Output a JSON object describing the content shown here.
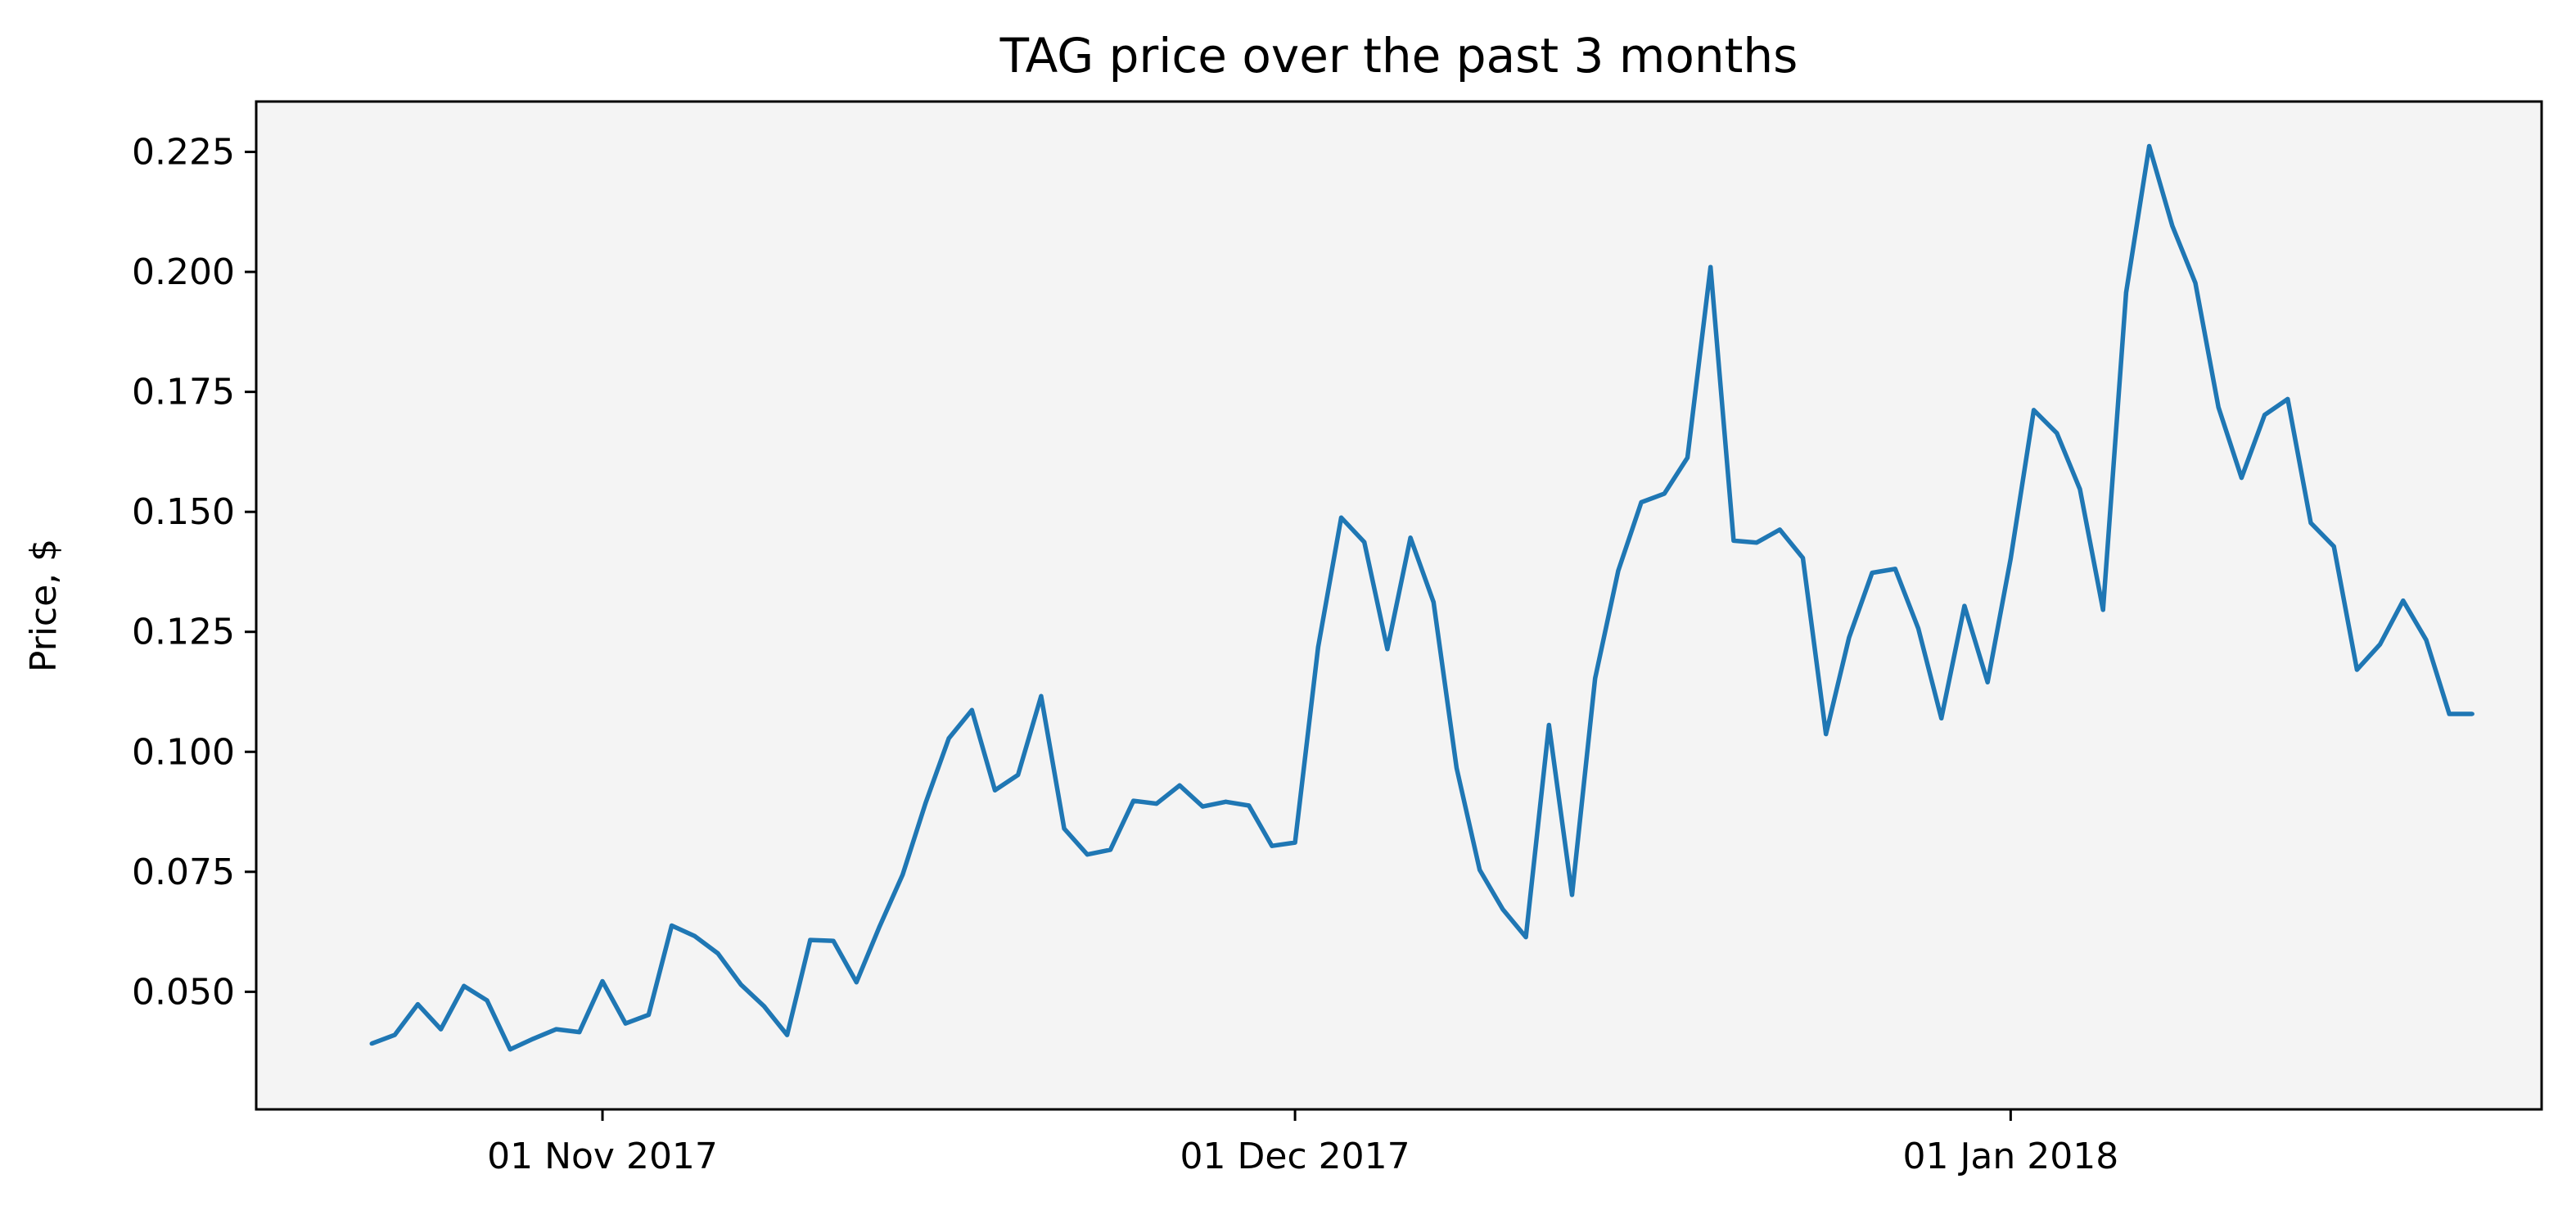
{
  "colors": {
    "background": "#ffffff",
    "plot_background": "#f4f4f4",
    "line": "#1f77b4",
    "axis": "#000000"
  },
  "chart_data": {
    "type": "line",
    "title": "TAG price over the past 3 months",
    "xlabel": "",
    "ylabel": "Price, $",
    "x_axis_type": "date",
    "xlim": [
      "2017-10-17",
      "2018-01-24"
    ],
    "ylim": [
      0.0255,
      0.2355
    ],
    "grid": false,
    "legend": "none",
    "x_ticks": [
      {
        "date": "2017-11-01",
        "label": "01 Nov 2017"
      },
      {
        "date": "2017-12-01",
        "label": "01 Dec 2017"
      },
      {
        "date": "2018-01-01",
        "label": "01 Jan 2018"
      }
    ],
    "y_ticks": [
      {
        "value": 0.05,
        "label": "0.050"
      },
      {
        "value": 0.075,
        "label": "0.075"
      },
      {
        "value": 0.1,
        "label": "0.100"
      },
      {
        "value": 0.125,
        "label": "0.125"
      },
      {
        "value": 0.15,
        "label": "0.150"
      },
      {
        "value": 0.175,
        "label": "0.175"
      },
      {
        "value": 0.2,
        "label": "0.200"
      },
      {
        "value": 0.225,
        "label": "0.225"
      }
    ],
    "series": [
      {
        "x": [
          "2017-10-22",
          "2017-10-23",
          "2017-10-24",
          "2017-10-25",
          "2017-10-26",
          "2017-10-27",
          "2017-10-28",
          "2017-10-29",
          "2017-10-30",
          "2017-10-31",
          "2017-11-01",
          "2017-11-02",
          "2017-11-03",
          "2017-11-04",
          "2017-11-05",
          "2017-11-06",
          "2017-11-07",
          "2017-11-08",
          "2017-11-09",
          "2017-11-10",
          "2017-11-11",
          "2017-11-12",
          "2017-11-13",
          "2017-11-14",
          "2017-11-15",
          "2017-11-16",
          "2017-11-17",
          "2017-11-18",
          "2017-11-19",
          "2017-11-20",
          "2017-11-21",
          "2017-11-22",
          "2017-11-23",
          "2017-11-24",
          "2017-11-25",
          "2017-11-26",
          "2017-11-27",
          "2017-11-28",
          "2017-11-29",
          "2017-11-30",
          "2017-12-01",
          "2017-12-02",
          "2017-12-03",
          "2017-12-04",
          "2017-12-05",
          "2017-12-06",
          "2017-12-07",
          "2017-12-08",
          "2017-12-09",
          "2017-12-10",
          "2017-12-11",
          "2017-12-12",
          "2017-12-13",
          "2017-12-14",
          "2017-12-15",
          "2017-12-16",
          "2017-12-17",
          "2017-12-18",
          "2017-12-19",
          "2017-12-20",
          "2017-12-21",
          "2017-12-22",
          "2017-12-23",
          "2017-12-24",
          "2017-12-25",
          "2017-12-26",
          "2017-12-27",
          "2017-12-28",
          "2017-12-29",
          "2017-12-30",
          "2017-12-31",
          "2018-01-01",
          "2018-01-02",
          "2018-01-03",
          "2018-01-04",
          "2018-01-05",
          "2018-01-06",
          "2018-01-07",
          "2018-01-08",
          "2018-01-09",
          "2018-01-10",
          "2018-01-11",
          "2018-01-12",
          "2018-01-13",
          "2018-01-14",
          "2018-01-15",
          "2018-01-16",
          "2018-01-17",
          "2018-01-18",
          "2018-01-19",
          "2018-01-20",
          "2018-01-21"
        ],
        "values": [
          0.0392,
          0.041,
          0.0474,
          0.0422,
          0.0512,
          0.0482,
          0.038,
          0.0402,
          0.0422,
          0.0416,
          0.0522,
          0.0434,
          0.0452,
          0.0638,
          0.0616,
          0.058,
          0.0515,
          0.047,
          0.041,
          0.0608,
          0.0606,
          0.052,
          0.0636,
          0.0744,
          0.0894,
          0.1028,
          0.1087,
          0.092,
          0.0952,
          0.1116,
          0.084,
          0.0786,
          0.0796,
          0.0898,
          0.0892,
          0.093,
          0.0886,
          0.0896,
          0.0888,
          0.0804,
          0.0811,
          0.1218,
          0.1488,
          0.1437,
          0.1214,
          0.1446,
          0.1312,
          0.0966,
          0.0754,
          0.0672,
          0.0614,
          0.1056,
          0.0702,
          0.1153,
          0.1377,
          0.152,
          0.1538,
          0.1613,
          0.201,
          0.144,
          0.1436,
          0.1463,
          0.1404,
          0.1037,
          0.1238,
          0.1373,
          0.1381,
          0.1257,
          0.107,
          0.1304,
          0.1145,
          0.1403,
          0.1712,
          0.1664,
          0.1547,
          0.1296,
          0.1957,
          0.2262,
          0.2096,
          0.1977,
          0.1718,
          0.1571,
          0.1702,
          0.1735,
          0.1477,
          0.1428,
          0.1171,
          0.1224,
          0.1315,
          0.1233,
          0.1079,
          0.1079
        ]
      }
    ]
  }
}
